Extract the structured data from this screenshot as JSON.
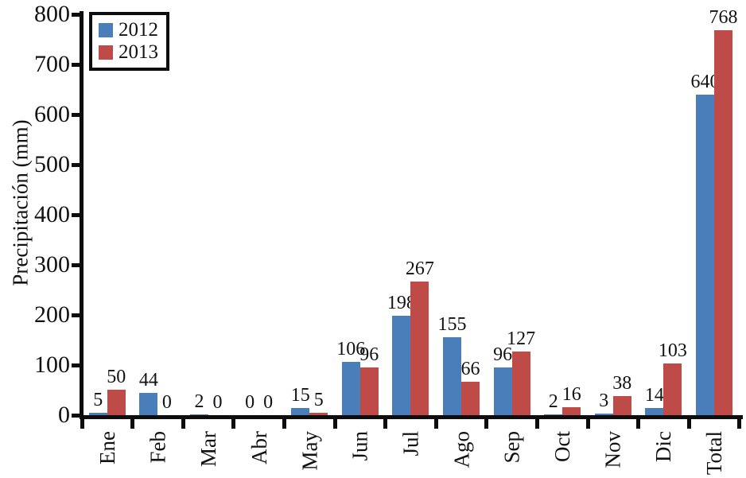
{
  "chart_data": {
    "type": "bar",
    "title": "",
    "xlabel": "",
    "ylabel": "Precipitación (mm)",
    "categories": [
      "Ene",
      "Feb",
      "Mar",
      "Abr",
      "May",
      "Jun",
      "Jul",
      "Ago",
      "Sep",
      "Oct",
      "Nov",
      "Dic",
      "Total"
    ],
    "series": [
      {
        "name": "2012",
        "color": "#4A7EBB",
        "values": [
          5,
          44,
          2,
          0,
          15,
          106,
          198,
          155,
          96,
          2,
          3,
          14,
          640
        ]
      },
      {
        "name": "2013",
        "color": "#BE4B48",
        "values": [
          50,
          0,
          0,
          0,
          5,
          96,
          267,
          66,
          127,
          16,
          38,
          103,
          768
        ]
      }
    ],
    "ylim": [
      0,
      800
    ],
    "ytick_step": 100,
    "yticks": [
      0,
      100,
      200,
      300,
      400,
      500,
      600,
      700,
      800
    ],
    "data_labels": true,
    "grid": false,
    "legend_position": "top-left",
    "axis_color": "#0d0d0d",
    "background_color": "#ffffff"
  }
}
